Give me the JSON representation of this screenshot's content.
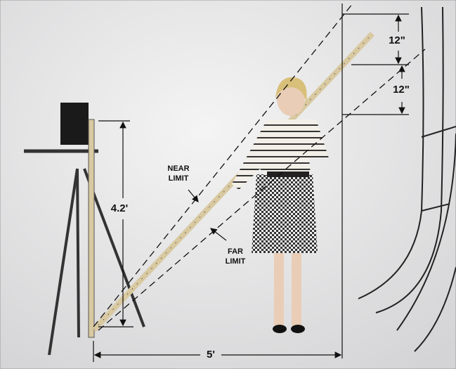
{
  "annotations": {
    "top_spacing": "12\"",
    "bottom_spacing": "12\"",
    "near_limit": [
      "NEAR",
      "LIMIT"
    ],
    "far_limit": [
      "FAR",
      "LIMIT"
    ],
    "camera_height": "4.2'",
    "distance": "5'"
  }
}
